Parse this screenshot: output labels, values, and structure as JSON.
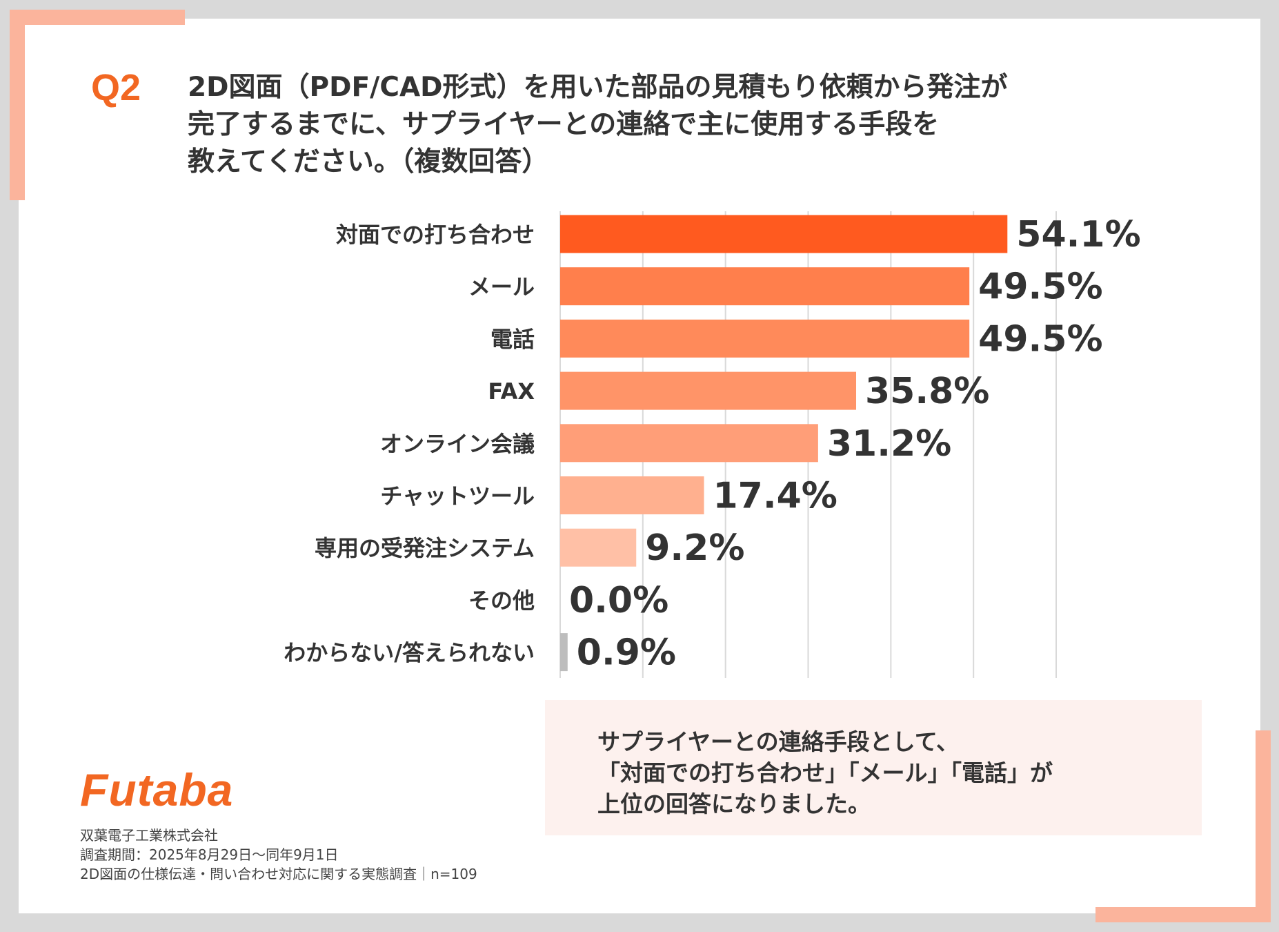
{
  "question": {
    "number": "Q2",
    "lines": [
      "2D図面（PDF/CAD形式）を用いた部品の見積もり依頼から発注が",
      "完了するまでに、サプライヤーとの連絡で主に使用する手段を",
      "教えてください。（複数回答）"
    ]
  },
  "colors": {
    "accent": "#f26722",
    "frame": "#fbb49c",
    "summary_bg": "#fdf1ee"
  },
  "chart_data": {
    "type": "bar",
    "orientation": "horizontal",
    "unit": "%",
    "xlim": [
      0,
      60
    ],
    "grid": true,
    "categories": [
      "対面での打ち合わせ",
      "メール",
      "電話",
      "FAX",
      "オンライン会議",
      "チャットツール",
      "専用の受発注システム",
      "その他",
      "わからない/答えられない"
    ],
    "values": [
      54.1,
      49.5,
      49.5,
      35.8,
      31.2,
      17.4,
      9.2,
      0.0,
      0.9
    ],
    "value_labels": [
      "54.1%",
      "49.5%",
      "49.5%",
      "35.8%",
      "31.2%",
      "17.4%",
      "9.2%",
      "0.0%",
      "0.9%"
    ],
    "bar_colors": [
      "#ff5a1f",
      "#ff7f4c",
      "#ff8a5a",
      "#ff9468",
      "#ff9e78",
      "#ffb08f",
      "#ffc0a6",
      "#ffc0a6",
      "#bdbdbd"
    ]
  },
  "summary": {
    "lines": [
      "サプライヤーとの連絡手段として、",
      "「対面での打ち合わせ」「メール」「電話」が",
      "上位の回答になりました。"
    ]
  },
  "company": {
    "logo": "Futaba",
    "name": "双葉電子工業株式会社",
    "period": "調査期間：2025年8月29日〜同年9月1日",
    "survey": "2D図面の仕様伝達・問い合わせ対応に関する実態調査｜n=109"
  }
}
